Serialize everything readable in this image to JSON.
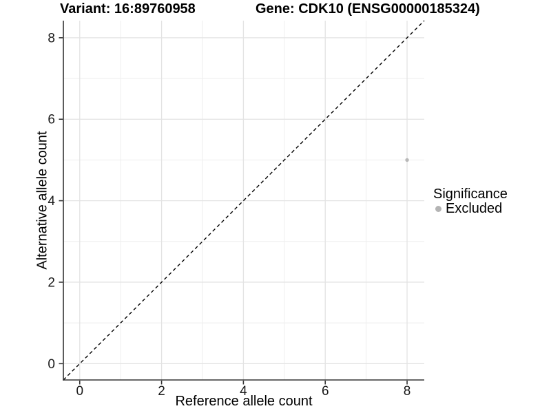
{
  "titles": {
    "left": "Variant: 16:89760958",
    "right": "Gene: CDK10 (ENSG00000185324)"
  },
  "chart_data": {
    "type": "scatter",
    "xlabel": "Reference allele count",
    "ylabel": "Alternative allele count",
    "xlim": [
      -0.4,
      8.42
    ],
    "ylim": [
      -0.4,
      8.42
    ],
    "x_ticks": [
      0,
      2,
      4,
      6,
      8
    ],
    "y_ticks": [
      0,
      2,
      4,
      6,
      8
    ],
    "x_minor_ticks": [
      1,
      3,
      5,
      7
    ],
    "y_minor_ticks": [
      1,
      3,
      5,
      7
    ],
    "grid": "on",
    "identity_line": {
      "style": "dashed",
      "x1": -0.4,
      "y1": -0.4,
      "x2": 8.42,
      "y2": 8.42,
      "color": "#000000"
    },
    "series": [
      {
        "name": "Excluded",
        "marker": "circle",
        "color": "#b8b8b8",
        "points": [
          [
            8,
            5
          ]
        ]
      }
    ],
    "legend": {
      "title": "Significance",
      "position": "right",
      "items": [
        {
          "label": "Excluded",
          "marker": "circle",
          "color": "#b4b4b4"
        }
      ]
    },
    "colors": {
      "grid_major": "#e3e3e3",
      "grid_minor": "#eeeeee",
      "axis_line": "#333333",
      "tick_label": "#1a1a1a"
    }
  }
}
